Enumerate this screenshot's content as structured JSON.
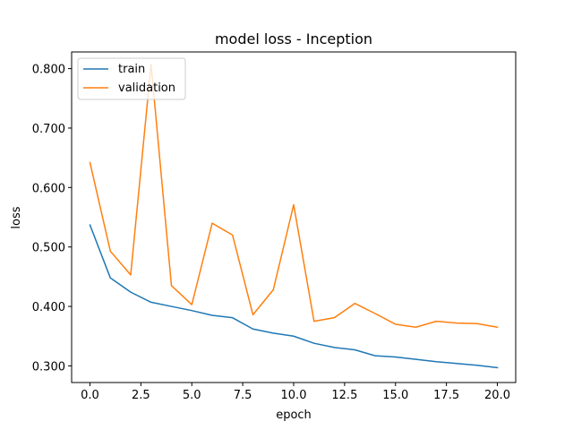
{
  "chart_data": {
    "type": "line",
    "title": "model loss - Inception",
    "xlabel": "epoch",
    "ylabel": "loss",
    "xlim": [
      -0.9,
      20.9
    ],
    "ylim": [
      0.272,
      0.828
    ],
    "xticks": [
      0.0,
      2.5,
      5.0,
      7.5,
      10.0,
      12.5,
      15.0,
      17.5,
      20.0
    ],
    "xtick_labels": [
      "0.0",
      "2.5",
      "5.0",
      "7.5",
      "10.0",
      "12.5",
      "15.0",
      "17.5",
      "20.0"
    ],
    "yticks": [
      0.3,
      0.4,
      0.5,
      0.6,
      0.7,
      0.8
    ],
    "ytick_labels": [
      "0.300",
      "0.400",
      "0.500",
      "0.600",
      "0.700",
      "0.800"
    ],
    "grid": false,
    "legend_position": "upper left",
    "x": [
      0,
      1,
      2,
      3,
      4,
      5,
      6,
      7,
      8,
      9,
      10,
      11,
      12,
      13,
      14,
      15,
      16,
      17,
      18,
      19,
      20
    ],
    "series": [
      {
        "name": "train",
        "color": "#1f77b4",
        "values": [
          0.537,
          0.448,
          0.424,
          0.407,
          0.4,
          0.393,
          0.385,
          0.381,
          0.362,
          0.355,
          0.35,
          0.338,
          0.331,
          0.327,
          0.317,
          0.315,
          0.311,
          0.307,
          0.304,
          0.301,
          0.297
        ]
      },
      {
        "name": "validation",
        "color": "#ff7f0e",
        "values": [
          0.642,
          0.493,
          0.453,
          0.807,
          0.435,
          0.403,
          0.54,
          0.52,
          0.386,
          0.428,
          0.571,
          0.375,
          0.381,
          0.405,
          0.388,
          0.37,
          0.365,
          0.375,
          0.372,
          0.371,
          0.365
        ]
      }
    ]
  }
}
